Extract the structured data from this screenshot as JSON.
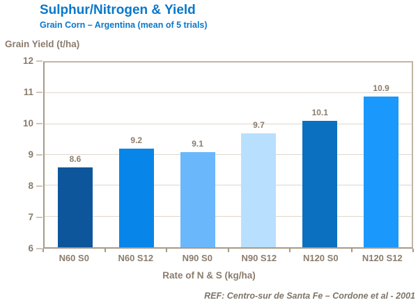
{
  "chart_data": {
    "type": "bar",
    "title": "Sulphur/Nitrogen & Yield",
    "subtitle": "Grain Corn – Argentina (mean of 5 trials)",
    "ylabel": "Grain Yield (t/ha)",
    "xlabel": "Rate of N & S (kg/ha)",
    "categories": [
      "N60 S0",
      "N60 S12",
      "N90 S0",
      "N90 S12",
      "N120 S0",
      "N120 S12"
    ],
    "values": [
      8.6,
      9.2,
      9.1,
      9.7,
      10.1,
      10.9
    ],
    "bar_colors": [
      "#0e569c",
      "#0885e8",
      "#6ab8fb",
      "#b8dffe",
      "#0a70bf",
      "#1b98fb"
    ],
    "ylim": [
      6,
      12
    ],
    "ytick_step": 1,
    "grid": true,
    "legend": false
  },
  "footer": {
    "reference": "REF: Centro-sur  de Santa Fe – Cordone et al - 2001"
  },
  "colors": {
    "title_blue": "#0878cb",
    "axis_text": "#8a7c6c",
    "ref_text": "#7e7568",
    "gridline": "#ded7cc",
    "plot_border": "#c0b4a4",
    "axis_line": "#a69a88",
    "tick_light": "#cfc6ba"
  }
}
